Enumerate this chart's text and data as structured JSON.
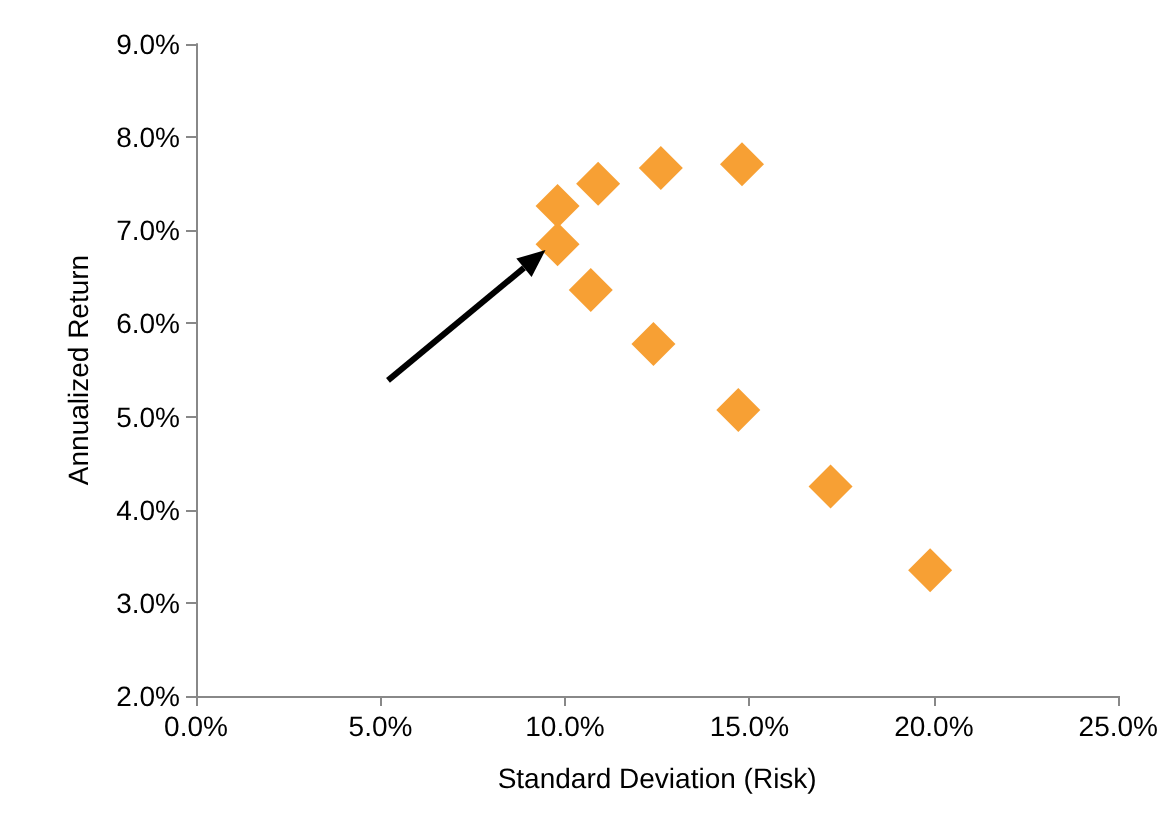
{
  "chart_data": {
    "type": "scatter",
    "xlabel": "Standard Deviation (Risk)",
    "ylabel": "Annualized Return",
    "x": [
      9.8,
      10.9,
      12.6,
      14.8,
      9.8,
      10.7,
      12.4,
      14.7,
      17.2,
      19.9
    ],
    "series": [
      {
        "color": "#f7a034",
        "values": [
          7.26,
          7.5,
          7.67,
          7.71,
          6.85,
          6.36,
          5.78,
          5.07,
          4.25,
          3.35
        ]
      }
    ],
    "marker": "diamond",
    "xlim": [
      0,
      25
    ],
    "xticks": [
      {
        "value": 0,
        "label": "0.0%"
      },
      {
        "value": 5,
        "label": "5.0%"
      },
      {
        "value": 10,
        "label": "10.0%"
      },
      {
        "value": 15,
        "label": "15.0%"
      },
      {
        "value": 20,
        "label": "20.0%"
      },
      {
        "value": 25,
        "label": "25.0%"
      }
    ],
    "ylim": [
      2,
      9
    ],
    "yticks": [
      {
        "value": 2,
        "label": "2.0%"
      },
      {
        "value": 3,
        "label": "3.0%"
      },
      {
        "value": 4,
        "label": "4.0%"
      },
      {
        "value": 5,
        "label": "5.0%"
      },
      {
        "value": 6,
        "label": "6.0%"
      },
      {
        "value": 7,
        "label": "7.0%"
      },
      {
        "value": 8,
        "label": "8.0%"
      },
      {
        "value": 9,
        "label": "9.0%"
      }
    ]
  }
}
